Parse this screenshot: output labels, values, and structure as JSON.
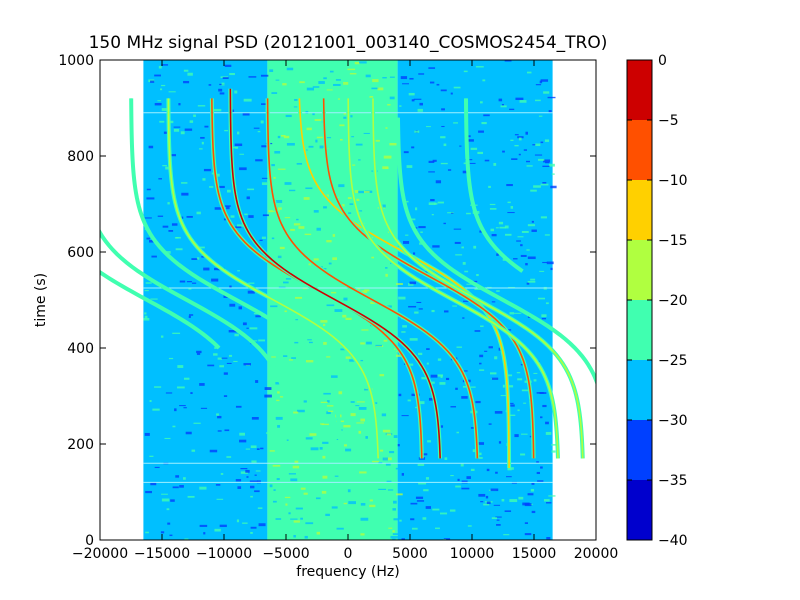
{
  "chart_data": {
    "type": "heatmap",
    "title": "150 MHz signal PSD (20121001_003140_COSMOS2454_TRO)",
    "xlabel": "frequency (Hz)",
    "ylabel": "time (s)",
    "xlim": [
      -20000,
      20000
    ],
    "ylim": [
      0,
      1000
    ],
    "xticks": [
      -20000,
      -15000,
      -10000,
      -5000,
      0,
      5000,
      10000,
      15000,
      20000
    ],
    "yticks": [
      0,
      200,
      400,
      600,
      800,
      1000
    ],
    "grid": false,
    "data_extent": {
      "freq_min": -16500,
      "freq_max": 16500,
      "time_min": 0,
      "time_max": 1000
    },
    "background_levels": [
      {
        "freq_range": [
          -16500,
          -6500
        ],
        "level": -27
      },
      {
        "freq_range": [
          -6500,
          4000
        ],
        "level": -23
      },
      {
        "freq_range": [
          4000,
          16500
        ],
        "level": -27
      }
    ],
    "horizontal_glitch_lines_time": [
      120,
      160,
      525,
      890
    ],
    "doppler_traces": [
      {
        "f0": -13000,
        "t_center": 500,
        "span": 8500,
        "t_width": 120,
        "t_range": [
          170,
          880
        ],
        "peak_level": -22
      },
      {
        "f0": -9000,
        "t_center": 500,
        "span": 8500,
        "t_width": 120,
        "t_range": [
          170,
          920
        ],
        "peak_level": -22
      },
      {
        "f0": -6000,
        "t_center": 500,
        "span": 8500,
        "t_width": 120,
        "t_range": [
          170,
          920
        ],
        "peak_level": -20
      },
      {
        "f0": -2500,
        "t_center": 520,
        "span": 8500,
        "t_width": 120,
        "t_range": [
          170,
          920
        ],
        "peak_level": -8
      },
      {
        "f0": -1000,
        "t_center": 500,
        "span": 8500,
        "t_width": 120,
        "t_range": [
          170,
          940
        ],
        "peak_level": -5
      },
      {
        "f0": 2000,
        "t_center": 500,
        "span": 8500,
        "t_width": 120,
        "t_range": [
          170,
          920
        ],
        "peak_level": -8
      },
      {
        "f0": 4500,
        "t_center": 600,
        "span": 8500,
        "t_width": 120,
        "t_range": [
          150,
          920
        ],
        "peak_level": -12
      },
      {
        "f0": 6500,
        "t_center": 550,
        "span": 8500,
        "t_width": 120,
        "t_range": [
          170,
          920
        ],
        "peak_level": -10
      },
      {
        "f0": 8500,
        "t_center": 500,
        "span": 8500,
        "t_width": 120,
        "t_range": [
          170,
          920
        ],
        "peak_level": -18
      },
      {
        "f0": 10500,
        "t_center": 500,
        "span": 8500,
        "t_width": 120,
        "t_range": [
          170,
          920
        ],
        "peak_level": -20
      },
      {
        "f0": 12500,
        "t_center": 500,
        "span": 8500,
        "t_width": 120,
        "t_range": [
          170,
          880
        ],
        "peak_level": -22
      },
      {
        "f0": 18000,
        "t_center": 500,
        "span": 8500,
        "t_width": 120,
        "t_range": [
          560,
          920
        ],
        "peak_level": -22
      },
      {
        "f0": -16200,
        "t_center": 500,
        "span": 8500,
        "t_width": 120,
        "t_range": [
          400,
          850
        ],
        "peak_level": -22
      }
    ],
    "colorbar": {
      "min": -40,
      "max": 0,
      "ticks": [
        0,
        -5,
        -10,
        -15,
        -20,
        -25,
        -30,
        -35,
        -40
      ],
      "bands": [
        {
          "from": -40,
          "to": -35,
          "color": "#0000cd"
        },
        {
          "from": -35,
          "to": -30,
          "color": "#0040ff"
        },
        {
          "from": -30,
          "to": -25,
          "color": "#00bfff"
        },
        {
          "from": -25,
          "to": -20,
          "color": "#40ffb0"
        },
        {
          "from": -20,
          "to": -15,
          "color": "#b0ff40"
        },
        {
          "from": -15,
          "to": -10,
          "color": "#ffd000"
        },
        {
          "from": -10,
          "to": -5,
          "color": "#ff5000"
        },
        {
          "from": -5,
          "to": 0,
          "color": "#cd0000"
        }
      ]
    }
  }
}
